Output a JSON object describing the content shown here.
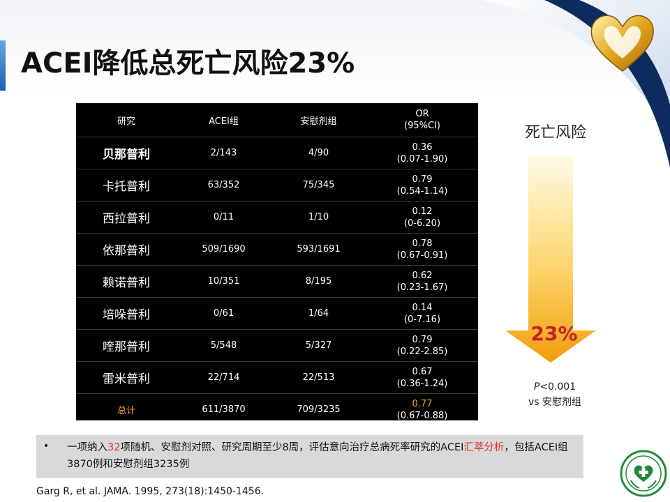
{
  "title": "ACEI降低总死亡风险23%",
  "table": {
    "headers": [
      "研究",
      "ACEI组",
      "安慰剂组",
      "OR",
      "(95%CI)"
    ],
    "rows": [
      {
        "study": "贝那普利",
        "acei": "2/143",
        "placebo": "4/90",
        "or": "0.36",
        "ci": "(0.07-1.90)"
      },
      {
        "study": "卡托普利",
        "acei": "63/352",
        "placebo": "75/345",
        "or": "0.79",
        "ci": "(0.54-1.14)"
      },
      {
        "study": "西拉普利",
        "acei": "0/11",
        "placebo": "1/10",
        "or": "0.12",
        "ci": "(0-6.20)"
      },
      {
        "study": "依那普利",
        "acei": "509/1690",
        "placebo": "593/1691",
        "or": "0.78",
        "ci": "(0.67-0.91)"
      },
      {
        "study": "赖诺普利",
        "acei": "10/351",
        "placebo": "8/195",
        "or": "0.62",
        "ci": "(0.23-1.67)"
      },
      {
        "study": "培哚普利",
        "acei": "0/61",
        "placebo": "1/64",
        "or": "0.14",
        "ci": "(0-7.16)"
      },
      {
        "study": "喹那普利",
        "acei": "5/548",
        "placebo": "5/327",
        "or": "0.79",
        "ci": "(0.22-2.85)"
      },
      {
        "study": "雷米普利",
        "acei": "22/714",
        "placebo": "22/513",
        "or": "0.67",
        "ci": "(0.36-1.24)"
      }
    ],
    "total": {
      "study": "总计",
      "acei": "611/3870",
      "placebo": "709/3235",
      "or": "0.77",
      "ci": "(0.67-0.88)"
    }
  },
  "risk": {
    "label": "死亡风险",
    "percent": "23%",
    "p_prefix": "P",
    "p_value": "<0.001",
    "vs": "vs 安慰剂组"
  },
  "bullet": {
    "dot": "•",
    "part1": "一项纳入",
    "num": "32",
    "part2": "项随机、安慰剂对照、研究周期至少8周，评估意向治疗总病死率研究的ACEI",
    "highlight": "汇萃分析",
    "part3": "，包括ACEI组3870例和安慰剂组3235例"
  },
  "reference": "Garg R, et al. JAMA. 1995, 273(18):1450-1456.",
  "colors": {
    "accent_red": "#e0342a",
    "accent_orange": "#f5a623",
    "table_bg": "#000000"
  }
}
